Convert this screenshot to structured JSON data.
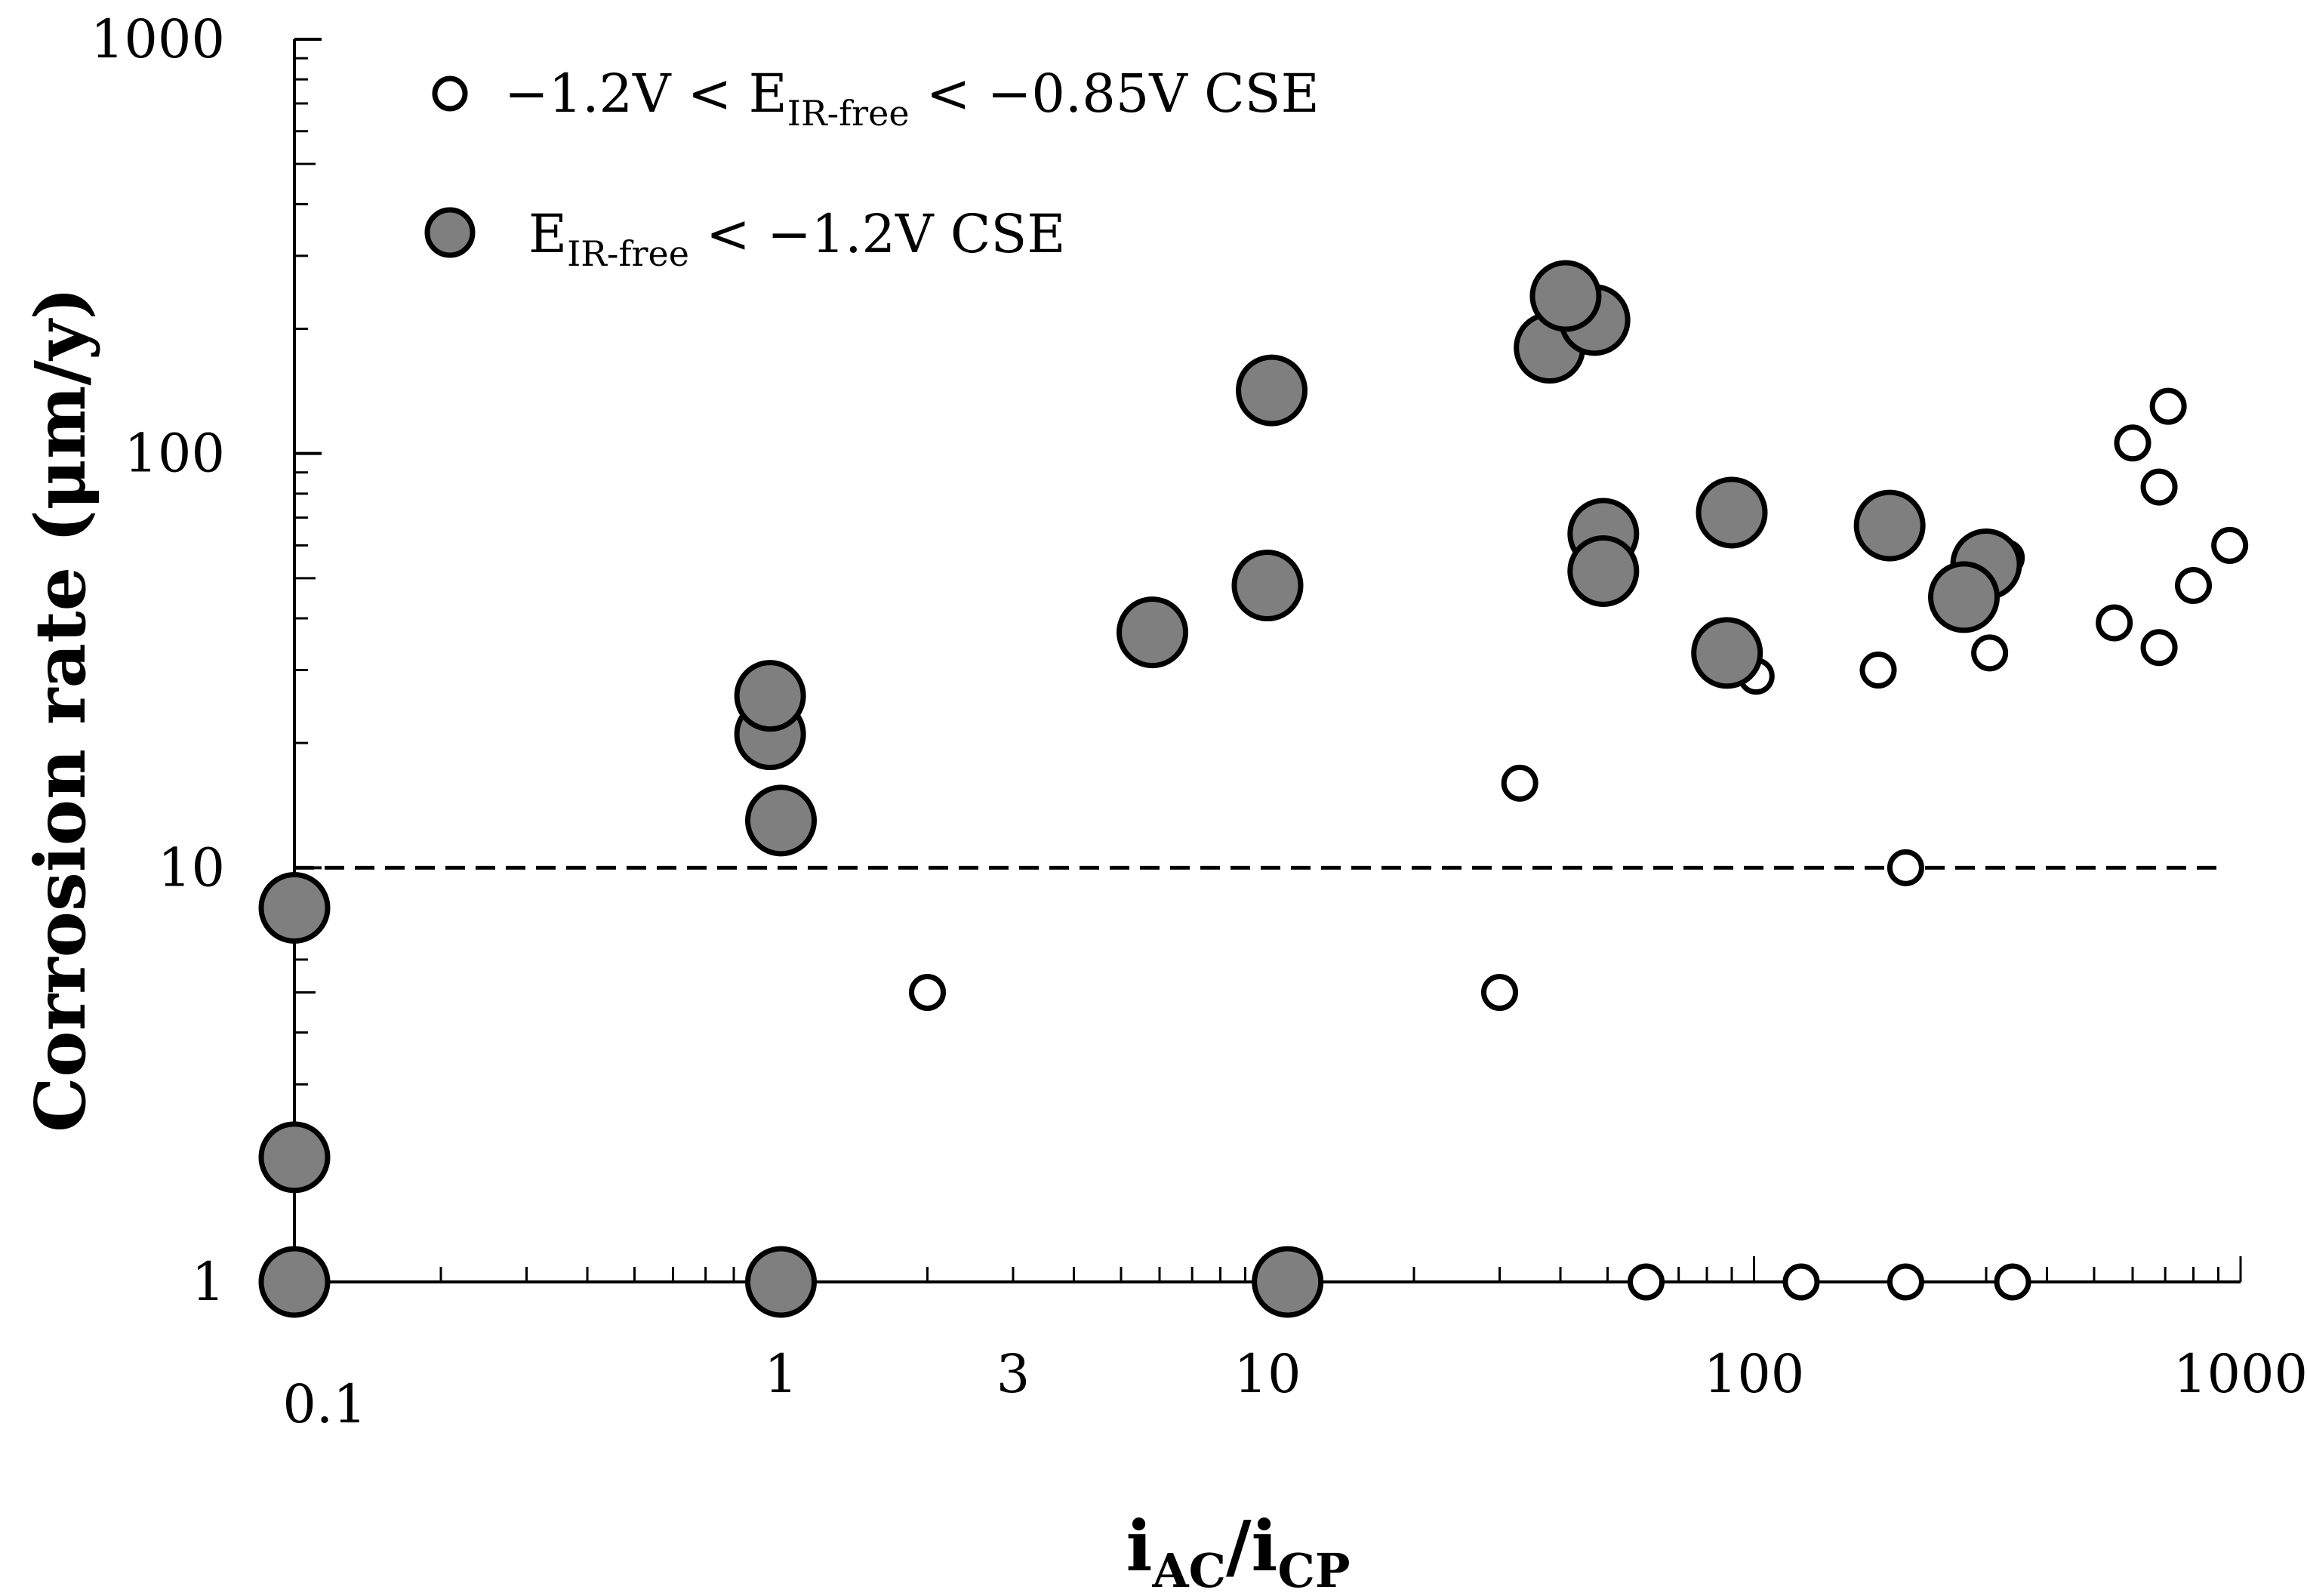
{
  "chart_data": {
    "type": "scatter",
    "title": "",
    "xscale": "log",
    "yscale": "log",
    "xlim": [
      0.1,
      1000
    ],
    "ylim": [
      1,
      1000
    ],
    "ylabel": "Corrosion rate (μm/y)",
    "xlabel": {
      "main1": "i",
      "sub1": "AC",
      "slash": "/",
      "main2": "i",
      "sub2": "CP"
    },
    "x_tick_labels": [
      "0.1",
      "1",
      "3",
      "10",
      "100",
      "1000"
    ],
    "x_tick_values": [
      0.1,
      1,
      3,
      10,
      100,
      1000
    ],
    "y_tick_labels": [
      "1",
      "10",
      "100",
      "1000"
    ],
    "y_tick_values": [
      1,
      10,
      100,
      1000
    ],
    "reference_line": {
      "y": 10,
      "style": "dashed"
    },
    "legend": [
      {
        "marker": "open-small",
        "pre": "−1.2V < E",
        "sub": "IR-free",
        "post": " < −0.85V CSE"
      },
      {
        "marker": "filled-large",
        "pre": "E",
        "sub": "IR-free",
        "post": " < −1.2V CSE"
      }
    ],
    "series": [
      {
        "name": "−1.2V < E_IR-free < −0.85V CSE",
        "marker": "open",
        "color": "#ffffff",
        "edge": "#000000",
        "points": [
          [
            2,
            5
          ],
          [
            30,
            5
          ],
          [
            33,
            16
          ],
          [
            60,
            1
          ],
          [
            101,
            29
          ],
          [
            125,
            1
          ],
          [
            180,
            30
          ],
          [
            205,
            10
          ],
          [
            205,
            1
          ],
          [
            330,
            56
          ],
          [
            305,
            33
          ],
          [
            340,
            1
          ],
          [
            550,
            39
          ],
          [
            600,
            106
          ],
          [
            680,
            34
          ],
          [
            680,
            83
          ],
          [
            710,
            130
          ],
          [
            800,
            48
          ],
          [
            950,
            60
          ]
        ]
      },
      {
        "name": "E_IR-free < −1.2V CSE",
        "marker": "filled",
        "color": "#7f7f7f",
        "edge": "#000000",
        "points": [
          [
            0.1,
            8
          ],
          [
            0.1,
            2
          ],
          [
            0.1,
            1
          ],
          [
            0.95,
            21
          ],
          [
            0.95,
            26
          ],
          [
            1,
            13
          ],
          [
            1,
            1
          ],
          [
            5.8,
            37
          ],
          [
            10,
            48
          ],
          [
            10.2,
            142
          ],
          [
            11,
            1
          ],
          [
            38,
            180
          ],
          [
            47,
            210
          ],
          [
            41,
            240
          ],
          [
            49,
            64
          ],
          [
            49,
            52
          ],
          [
            90,
            72
          ],
          [
            88,
            33
          ],
          [
            190,
            67
          ],
          [
            300,
            54
          ],
          [
            270,
            45
          ]
        ]
      }
    ]
  }
}
